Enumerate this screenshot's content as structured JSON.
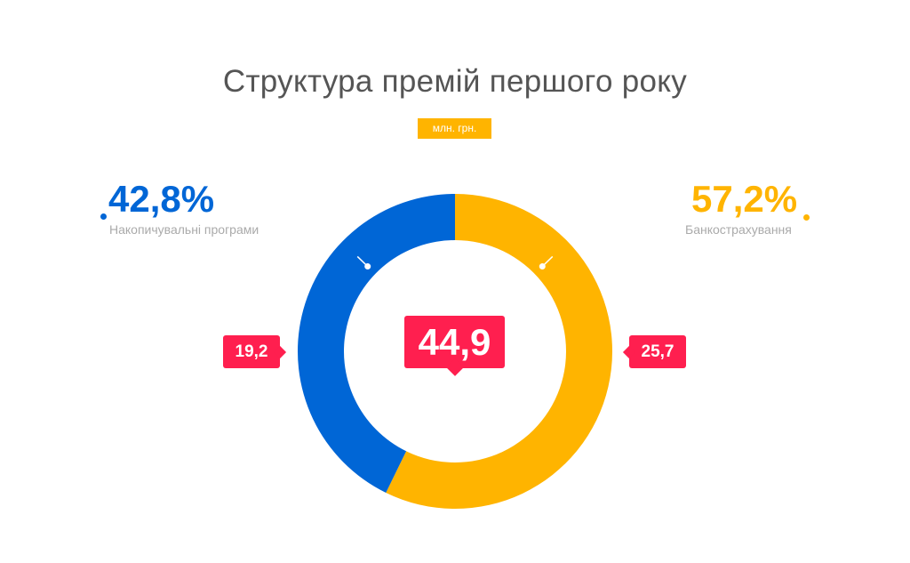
{
  "chart_data": {
    "type": "pie",
    "title": "Структура премій першого року",
    "unit": "млн. грн.",
    "total": "44,9",
    "categories": [
      "Банкострахування",
      "Накопичувальні програми"
    ],
    "values": [
      25.7,
      19.2
    ],
    "value_labels": [
      "25,7",
      "19,2"
    ],
    "percent_labels": [
      "57,2%",
      "42,8%"
    ],
    "percents": [
      57.2,
      42.8
    ],
    "colors": [
      "#ffb400",
      "#0066d6"
    ],
    "accent": "#ff1f4f",
    "donut": true
  }
}
